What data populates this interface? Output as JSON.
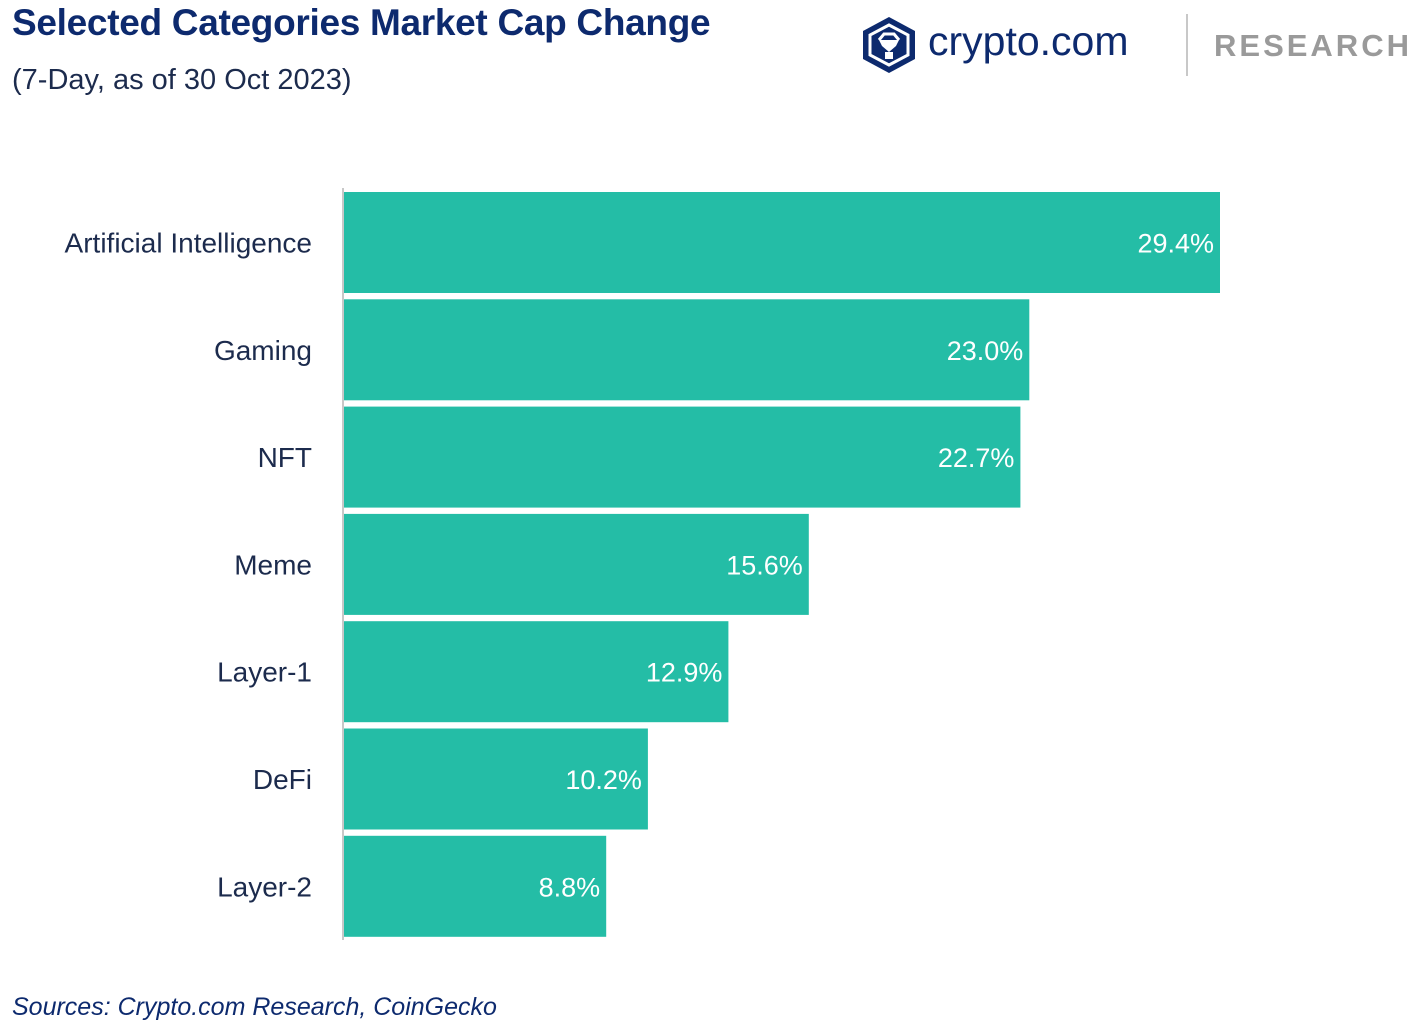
{
  "header": {
    "title": "Selected Categories Market Cap Change",
    "subtitle": "(7-Day, as of 30 Oct 2023)"
  },
  "brand": {
    "logo_icon": "crypto-com-lion-shield-icon",
    "name": "crypto.com",
    "section": "RESEARCH"
  },
  "colors": {
    "bar": "#24bda6",
    "title": "#0d2a6e",
    "axis": "#c8c8c8"
  },
  "chart_data": {
    "type": "bar",
    "orientation": "horizontal",
    "title": "Selected Categories Market Cap Change",
    "subtitle": "(7-Day, as of 30 Oct 2023)",
    "categories": [
      "Artificial Intelligence",
      "Gaming",
      "NFT",
      "Meme",
      "Layer-1",
      "DeFi",
      "Layer-2"
    ],
    "values": [
      29.4,
      23.0,
      22.7,
      15.6,
      12.9,
      10.2,
      8.8
    ],
    "value_labels": [
      "29.4%",
      "23.0%",
      "22.7%",
      "15.6%",
      "12.9%",
      "10.2%",
      "8.8%"
    ],
    "unit": "%",
    "xlim": [
      0,
      29.4
    ],
    "grid": false,
    "legend": "none"
  },
  "footer": {
    "source": "Sources: Crypto.com Research, CoinGecko"
  }
}
